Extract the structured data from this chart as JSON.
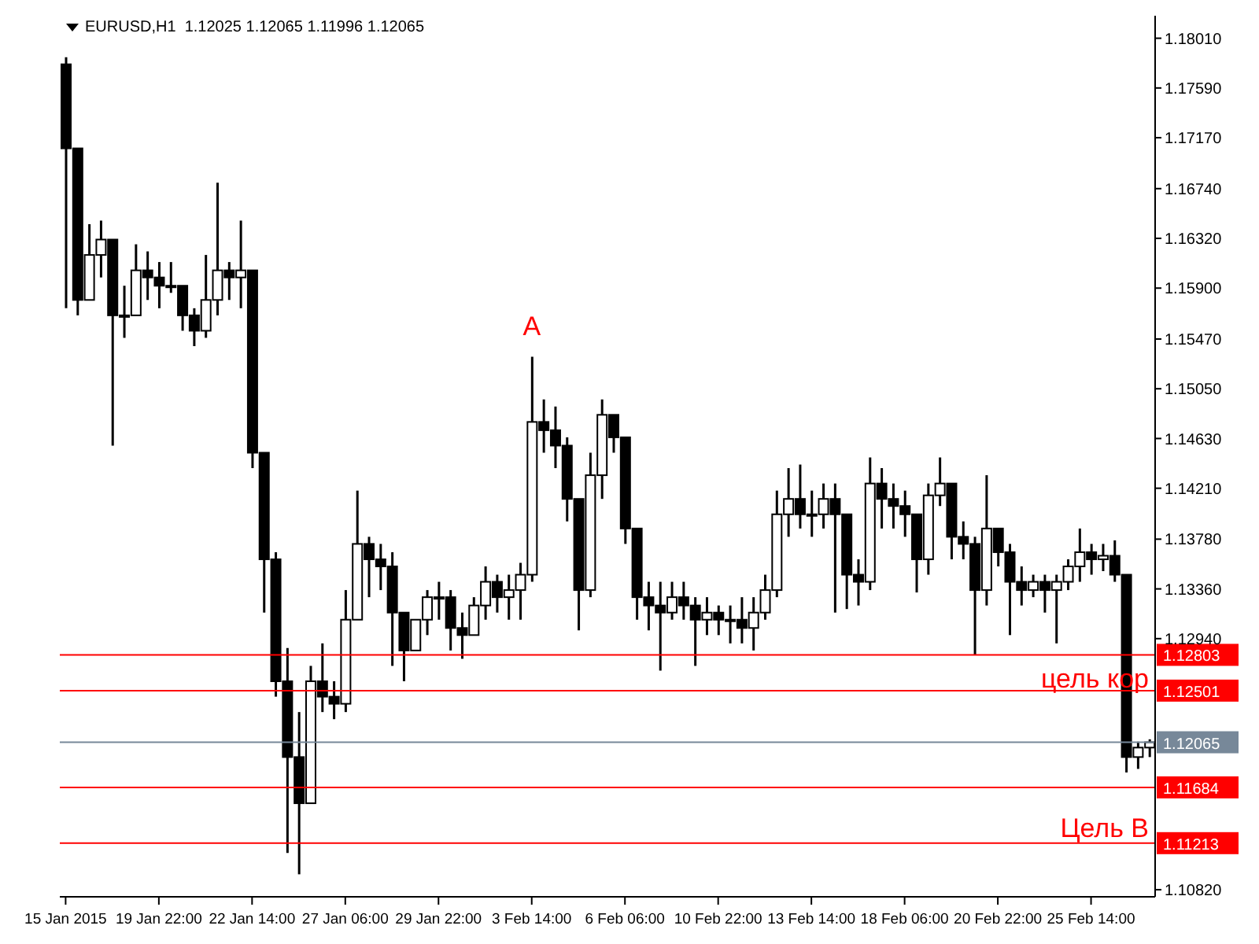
{
  "chart_data": {
    "type": "candlestick",
    "title": "EURUSD,H1  1.12025 1.12065 1.11996 1.12065",
    "categories": [
      "15 Jan 2015",
      null,
      null,
      null,
      null,
      null,
      null,
      null,
      "19 Jan 22:00",
      null,
      null,
      null,
      null,
      null,
      null,
      null,
      "22 Jan 14:00",
      null,
      null,
      null,
      null,
      null,
      null,
      null,
      "27 Jan 06:00",
      null,
      null,
      null,
      null,
      null,
      null,
      null,
      "29 Jan 22:00",
      null,
      null,
      null,
      null,
      null,
      null,
      null,
      "3 Feb 14:00",
      null,
      null,
      null,
      null,
      null,
      null,
      null,
      "6 Feb 06:00",
      null,
      null,
      null,
      null,
      null,
      null,
      null,
      "10 Feb 22:00",
      null,
      null,
      null,
      null,
      null,
      null,
      null,
      "13 Feb 14:00",
      null,
      null,
      null,
      null,
      null,
      null,
      null,
      "18 Feb 06:00",
      null,
      null,
      null,
      null,
      null,
      null,
      null,
      "20 Feb 22:00",
      null,
      null,
      null,
      null,
      null,
      null,
      null,
      "25 Feb 14:00",
      null,
      null,
      null,
      null,
      null
    ],
    "color": "#000000",
    "ohlc": [
      [
        1.1779,
        1.1785,
        1.1573,
        1.1708
      ],
      [
        1.1708,
        1.1708,
        1.1567,
        1.158
      ],
      [
        1.158,
        1.1644,
        1.158,
        1.1618
      ],
      [
        1.1618,
        1.1647,
        1.1599,
        1.1631
      ],
      [
        1.1631,
        1.1631,
        1.1457,
        1.1567
      ],
      [
        1.1567,
        1.1592,
        1.1548,
        1.1567
      ],
      [
        1.1567,
        1.1627,
        1.1567,
        1.1605
      ],
      [
        1.1605,
        1.1621,
        1.158,
        1.1599
      ],
      [
        1.1599,
        1.1612,
        1.1573,
        1.1592
      ],
      [
        1.1592,
        1.1612,
        1.1586,
        1.1592
      ],
      [
        1.1592,
        1.1592,
        1.1554,
        1.1567
      ],
      [
        1.1567,
        1.1573,
        1.1541,
        1.1554
      ],
      [
        1.1554,
        1.1618,
        1.1548,
        1.158
      ],
      [
        1.158,
        1.1679,
        1.1567,
        1.1605
      ],
      [
        1.1605,
        1.1612,
        1.158,
        1.1599
      ],
      [
        1.1599,
        1.1647,
        1.1573,
        1.1605
      ],
      [
        1.1605,
        1.1605,
        1.1438,
        1.1451
      ],
      [
        1.1451,
        1.1451,
        1.1316,
        1.1361
      ],
      [
        1.1361,
        1.1367,
        1.1245,
        1.1258
      ],
      [
        1.1258,
        1.1286,
        1.1113,
        1.1194
      ],
      [
        1.1194,
        1.1232,
        1.1095,
        1.1155
      ],
      [
        1.1155,
        1.1271,
        1.1155,
        1.1258
      ],
      [
        1.1258,
        1.129,
        1.1232,
        1.1245
      ],
      [
        1.1245,
        1.1258,
        1.1226,
        1.1239
      ],
      [
        1.1239,
        1.1335,
        1.1232,
        1.131
      ],
      [
        1.131,
        1.1419,
        1.131,
        1.1374
      ],
      [
        1.1374,
        1.138,
        1.1329,
        1.1361
      ],
      [
        1.1361,
        1.1374,
        1.1335,
        1.1355
      ],
      [
        1.1355,
        1.1367,
        1.1271,
        1.1316
      ],
      [
        1.1316,
        1.1316,
        1.1258,
        1.1284
      ],
      [
        1.1284,
        1.131,
        1.1284,
        1.131
      ],
      [
        1.131,
        1.1335,
        1.1297,
        1.1329
      ],
      [
        1.1329,
        1.1342,
        1.131,
        1.1329
      ],
      [
        1.1329,
        1.1335,
        1.1284,
        1.1303
      ],
      [
        1.1303,
        1.1316,
        1.1277,
        1.1297
      ],
      [
        1.1297,
        1.1329,
        1.1297,
        1.1322
      ],
      [
        1.1322,
        1.1355,
        1.131,
        1.1342
      ],
      [
        1.1342,
        1.1348,
        1.1316,
        1.1329
      ],
      [
        1.1329,
        1.1348,
        1.131,
        1.1335
      ],
      [
        1.1335,
        1.1358,
        1.131,
        1.1348
      ],
      [
        1.1348,
        1.1532,
        1.1342,
        1.1477
      ],
      [
        1.1477,
        1.1496,
        1.1451,
        1.147
      ],
      [
        1.147,
        1.149,
        1.1438,
        1.1457
      ],
      [
        1.1457,
        1.1464,
        1.1393,
        1.1412
      ],
      [
        1.1412,
        1.1412,
        1.1301,
        1.1335
      ],
      [
        1.1335,
        1.1451,
        1.1329,
        1.1432
      ],
      [
        1.1432,
        1.1496,
        1.1412,
        1.1483
      ],
      [
        1.1483,
        1.1483,
        1.1451,
        1.1464
      ],
      [
        1.1464,
        1.1464,
        1.1374,
        1.1387
      ],
      [
        1.1387,
        1.1387,
        1.131,
        1.1329
      ],
      [
        1.1329,
        1.1342,
        1.1301,
        1.1322
      ],
      [
        1.1322,
        1.1342,
        1.1267,
        1.1316
      ],
      [
        1.1316,
        1.1342,
        1.131,
        1.1329
      ],
      [
        1.1329,
        1.1342,
        1.131,
        1.1322
      ],
      [
        1.1322,
        1.1329,
        1.1271,
        1.131
      ],
      [
        1.131,
        1.1329,
        1.1297,
        1.1316
      ],
      [
        1.1316,
        1.1322,
        1.1297,
        1.131
      ],
      [
        1.131,
        1.1322,
        1.129,
        1.131
      ],
      [
        1.131,
        1.1329,
        1.129,
        1.1303
      ],
      [
        1.1303,
        1.1329,
        1.1284,
        1.1316
      ],
      [
        1.1316,
        1.1348,
        1.131,
        1.1335
      ],
      [
        1.1335,
        1.1419,
        1.1329,
        1.1399
      ],
      [
        1.1399,
        1.1438,
        1.138,
        1.1412
      ],
      [
        1.1412,
        1.1441,
        1.1387,
        1.1399
      ],
      [
        1.1399,
        1.1419,
        1.138,
        1.1399
      ],
      [
        1.1399,
        1.1425,
        1.1387,
        1.1412
      ],
      [
        1.1412,
        1.1425,
        1.1316,
        1.1399
      ],
      [
        1.1399,
        1.1399,
        1.1319,
        1.1348
      ],
      [
        1.1348,
        1.1361,
        1.1322,
        1.1342
      ],
      [
        1.1342,
        1.1447,
        1.1335,
        1.1425
      ],
      [
        1.1425,
        1.1438,
        1.1387,
        1.1412
      ],
      [
        1.1412,
        1.1425,
        1.1387,
        1.1406
      ],
      [
        1.1406,
        1.1419,
        1.138,
        1.1399
      ],
      [
        1.1399,
        1.1399,
        1.1333,
        1.1361
      ],
      [
        1.1361,
        1.1425,
        1.1348,
        1.1415
      ],
      [
        1.1415,
        1.1447,
        1.1406,
        1.1425
      ],
      [
        1.1425,
        1.1425,
        1.1361,
        1.138
      ],
      [
        1.138,
        1.1393,
        1.1361,
        1.1374
      ],
      [
        1.1374,
        1.138,
        1.128,
        1.1335
      ],
      [
        1.1335,
        1.1432,
        1.1322,
        1.1387
      ],
      [
        1.1387,
        1.1387,
        1.1355,
        1.1367
      ],
      [
        1.1367,
        1.1374,
        1.1297,
        1.1342
      ],
      [
        1.1342,
        1.1355,
        1.1322,
        1.1335
      ],
      [
        1.1335,
        1.1348,
        1.1329,
        1.1342
      ],
      [
        1.1342,
        1.1348,
        1.1316,
        1.1335
      ],
      [
        1.1335,
        1.1348,
        1.129,
        1.1342
      ],
      [
        1.1342,
        1.1361,
        1.1335,
        1.1355
      ],
      [
        1.1355,
        1.1387,
        1.1342,
        1.1367
      ],
      [
        1.1367,
        1.1374,
        1.1348,
        1.1361
      ],
      [
        1.1361,
        1.1374,
        1.1351,
        1.1364
      ],
      [
        1.1364,
        1.1377,
        1.1342,
        1.1348
      ],
      [
        1.1348,
        1.1348,
        1.1181,
        1.1194
      ],
      [
        1.1194,
        1.1207,
        1.1184,
        1.1202
      ],
      [
        1.1202,
        1.1209,
        1.1194,
        1.12065
      ]
    ],
    "ylim": [
      1.1076,
      1.182
    ],
    "yticks": [
      {
        "value": 1.1801,
        "label": "1.18010"
      },
      {
        "value": 1.1759,
        "label": "1.17590"
      },
      {
        "value": 1.1717,
        "label": "1.17170"
      },
      {
        "value": 1.1674,
        "label": "1.16740"
      },
      {
        "value": 1.1632,
        "label": "1.16320"
      },
      {
        "value": 1.159,
        "label": "1.15900"
      },
      {
        "value": 1.1547,
        "label": "1.15470"
      },
      {
        "value": 1.1505,
        "label": "1.15050"
      },
      {
        "value": 1.1463,
        "label": "1.14630"
      },
      {
        "value": 1.1421,
        "label": "1.14210"
      },
      {
        "value": 1.1378,
        "label": "1.13780"
      },
      {
        "value": 1.1336,
        "label": "1.13360"
      },
      {
        "value": 1.1294,
        "label": "1.12940"
      },
      {
        "value": 1.1082,
        "label": "1.10820"
      }
    ],
    "ref_lines": [
      {
        "axis": "y",
        "value": 1.12803,
        "label": "1.12803",
        "color": "#ff0000"
      },
      {
        "axis": "y",
        "value": 1.12501,
        "label": "1.12501",
        "color": "#ff0000"
      },
      {
        "axis": "y",
        "value": 1.12065,
        "label": "1.12065",
        "color": "#778899"
      },
      {
        "axis": "y",
        "value": 1.11684,
        "label": "1.11684",
        "color": "#ff0000"
      },
      {
        "axis": "y",
        "value": 1.11213,
        "label": "1.11213",
        "color": "#ff0000"
      }
    ],
    "annotations": [
      {
        "text": "A",
        "x": "3 Feb 14:00",
        "y": 1.1532
      },
      "цель кор",
      "Цель B"
    ]
  }
}
